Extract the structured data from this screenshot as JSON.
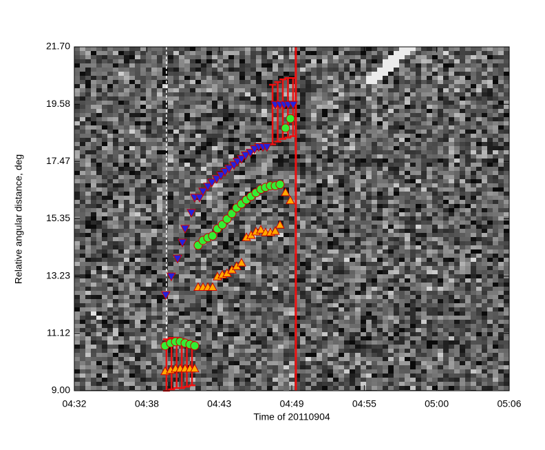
{
  "chart_data": {
    "type": "scatter",
    "xlabel": "Time of 20110904",
    "ylabel": "Relative angular distance, deg",
    "xlim": [
      272,
      306
    ],
    "ylim": [
      9.0,
      21.7
    ],
    "xticks": [
      {
        "value": 272,
        "label": "04:32"
      },
      {
        "value": 277.67,
        "label": "04:38"
      },
      {
        "value": 283.33,
        "label": "04:43"
      },
      {
        "value": 289,
        "label": "04:49"
      },
      {
        "value": 294.67,
        "label": "04:55"
      },
      {
        "value": 300.33,
        "label": "05:00"
      },
      {
        "value": 306,
        "label": "05:06"
      }
    ],
    "yticks": [
      {
        "value": 9.0,
        "label": "9.00"
      },
      {
        "value": 11.12,
        "label": "11.12"
      },
      {
        "value": 13.23,
        "label": "13.23"
      },
      {
        "value": 15.35,
        "label": "15.35"
      },
      {
        "value": 17.47,
        "label": "17.47"
      },
      {
        "value": 19.58,
        "label": "19.58"
      },
      {
        "value": 21.7,
        "label": "21.70"
      }
    ],
    "vlines": [
      {
        "x": 279.2,
        "color": "#ffffff",
        "style": "dashed"
      },
      {
        "x": 289.32,
        "color": "#ee1111",
        "style": "solid"
      }
    ],
    "error_bars": {
      "color": "#ee1111",
      "x": [
        279.2,
        279.6,
        280.0,
        280.4,
        280.8,
        281.2,
        287.5,
        287.9,
        288.3,
        288.7,
        289.1
      ],
      "low": [
        9.0,
        9.05,
        9.1,
        9.1,
        9.15,
        9.2,
        18.1,
        18.2,
        18.3,
        18.35,
        18.4
      ],
      "high": [
        10.9,
        10.95,
        10.95,
        10.9,
        10.85,
        10.8,
        20.3,
        20.4,
        20.5,
        20.55,
        20.55
      ]
    },
    "series": [
      {
        "marker": "triangle-down",
        "color": "#2222dd",
        "x": [
          279.15,
          279.58,
          280.07,
          280.45,
          280.66,
          281.15,
          281.41,
          281.79,
          282.06,
          282.44,
          282.76,
          283.13,
          283.46,
          283.78,
          284.1,
          284.48,
          284.75,
          285.07,
          285.39,
          285.77,
          286.09,
          286.42,
          286.74,
          287.06,
          287.71,
          288.08,
          288.41,
          288.73,
          289.11
        ],
        "values": [
          12.53,
          13.22,
          13.88,
          14.47,
          14.98,
          15.57,
          16.13,
          16.13,
          16.36,
          16.54,
          16.69,
          16.82,
          16.95,
          17.08,
          17.2,
          17.33,
          17.46,
          17.56,
          17.69,
          17.79,
          17.92,
          18.0,
          18.0,
          18.0,
          19.56,
          19.56,
          19.56,
          19.56,
          19.56
        ]
      },
      {
        "marker": "circle",
        "color": "#33ee33",
        "x": [
          279.1,
          279.53,
          279.91,
          280.28,
          280.66,
          281.04,
          281.41,
          281.68,
          282.06,
          282.44,
          282.81,
          283.19,
          283.57,
          283.94,
          284.32,
          284.69,
          285.07,
          285.45,
          285.82,
          286.2,
          286.58,
          286.95,
          287.33,
          287.71,
          288.08,
          288.51,
          288.89
        ],
        "values": [
          10.66,
          10.76,
          10.81,
          10.81,
          10.76,
          10.71,
          10.66,
          14.37,
          14.55,
          14.65,
          14.72,
          14.98,
          15.13,
          15.34,
          15.54,
          15.75,
          15.9,
          16.05,
          16.18,
          16.31,
          16.44,
          16.51,
          16.57,
          16.57,
          16.62,
          18.7,
          19.05
        ]
      },
      {
        "marker": "triangle-up",
        "color": "#ffaa00",
        "x": [
          279.1,
          279.53,
          279.91,
          280.28,
          280.66,
          281.04,
          281.41,
          281.68,
          282.06,
          282.44,
          282.81,
          283.19,
          283.57,
          283.94,
          284.32,
          284.69,
          285.07,
          285.45,
          285.82,
          286.2,
          286.58,
          286.95,
          287.33,
          287.71,
          288.08,
          288.51,
          288.89
        ],
        "values": [
          9.72,
          9.77,
          9.82,
          9.82,
          9.82,
          9.82,
          9.82,
          12.83,
          12.83,
          12.83,
          12.83,
          13.22,
          13.29,
          13.34,
          13.47,
          13.6,
          13.73,
          14.67,
          14.75,
          14.88,
          14.95,
          14.85,
          14.85,
          14.9,
          15.13,
          16.33,
          16.03
        ]
      }
    ]
  }
}
